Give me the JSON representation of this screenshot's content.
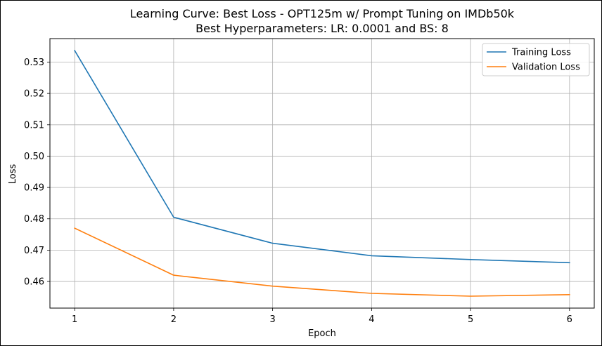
{
  "chart_data": {
    "type": "line",
    "title": "Learning Curve: Best Loss - OPT125m w/ Prompt Tuning on IMDb50k",
    "subtitle": "Best Hyperparameters: LR: 0.0001 and BS: 8",
    "xlabel": "Epoch",
    "ylabel": "Loss",
    "x": [
      1,
      2,
      3,
      4,
      5,
      6
    ],
    "x_ticks": [
      "1",
      "2",
      "3",
      "4",
      "5",
      "6"
    ],
    "y_ticks": [
      "0.46",
      "0.47",
      "0.48",
      "0.49",
      "0.50",
      "0.51",
      "0.52",
      "0.53"
    ],
    "xlim": [
      0.75,
      6.25
    ],
    "ylim": [
      0.4515,
      0.5375
    ],
    "grid": true,
    "legend_position": "top-right",
    "series": [
      {
        "name": "Training Loss",
        "color": "#1f77b4",
        "values": [
          0.5337,
          0.4805,
          0.4722,
          0.4682,
          0.467,
          0.466
        ]
      },
      {
        "name": "Validation Loss",
        "color": "#ff7f0e",
        "values": [
          0.477,
          0.462,
          0.4585,
          0.4562,
          0.4553,
          0.4558
        ]
      }
    ]
  }
}
